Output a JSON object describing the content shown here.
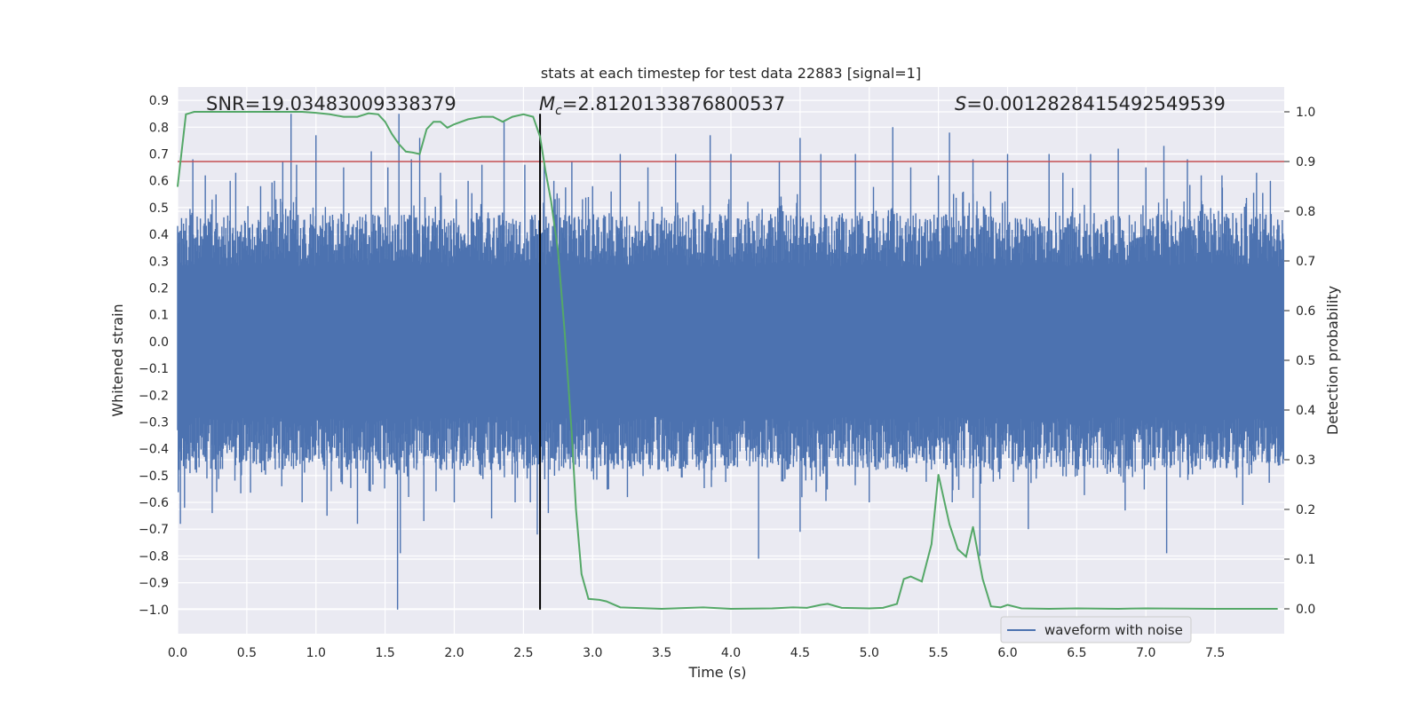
{
  "chart_data": {
    "type": "line",
    "title": "stats at each timestep for test data 22883 [signal=1]",
    "xlabel": "Time (s)",
    "ylabel_left": "Whitened strain",
    "ylabel_right": "Detection probability",
    "xlim": [
      0.0,
      8.0
    ],
    "ylim_left": [
      -1.09,
      0.95
    ],
    "ylim_right": [
      -0.05,
      1.05
    ],
    "x_ticks": [
      "0.0",
      "0.5",
      "1.0",
      "1.5",
      "2.0",
      "2.5",
      "3.0",
      "3.5",
      "4.0",
      "4.5",
      "5.0",
      "5.5",
      "6.0",
      "6.5",
      "7.0",
      "7.5"
    ],
    "y_ticks_left": [
      "0.9",
      "0.8",
      "0.7",
      "0.6",
      "0.5",
      "0.4",
      "0.3",
      "0.2",
      "0.1",
      "0.0",
      "−0.1",
      "−0.2",
      "−0.3",
      "−0.4",
      "−0.5",
      "−0.6",
      "−0.7",
      "−0.8",
      "−0.9",
      "−1.0"
    ],
    "y_ticks_right": [
      "1.0",
      "0.9",
      "0.8",
      "0.7",
      "0.6",
      "0.5",
      "0.4",
      "0.3",
      "0.2",
      "0.1",
      "0.0"
    ],
    "annotations": {
      "snr": "SNR=19.03483009338379",
      "mc_symbol": "M",
      "mc_sub": "c",
      "mc_value": "=2.8120133876800537",
      "s_symbol": "S",
      "s_value": "=0.0012828415492549539"
    },
    "threshold": {
      "value": 0.9,
      "axis": "right",
      "color": "#c44e52"
    },
    "event_marker": {
      "x": 2.62,
      "y_range": [
        -1.0,
        0.85
      ],
      "color": "#000000"
    },
    "legend": [
      {
        "label": "waveform with noise",
        "color": "#4c72b0"
      }
    ],
    "series": [
      {
        "name": "waveform with noise",
        "axis": "left",
        "color": "#4c72b0",
        "style": "noise",
        "typical_envelope": 0.28,
        "duration": 8.0,
        "spikes": [
          [
            0.02,
            -0.68
          ],
          [
            0.05,
            -0.62
          ],
          [
            0.11,
            0.68
          ],
          [
            0.2,
            0.62
          ],
          [
            0.25,
            -0.64
          ],
          [
            0.38,
            0.6
          ],
          [
            0.42,
            0.63
          ],
          [
            0.6,
            0.58
          ],
          [
            0.7,
            0.6
          ],
          [
            0.76,
            0.67
          ],
          [
            0.82,
            0.85
          ],
          [
            0.86,
            0.66
          ],
          [
            0.9,
            -0.6
          ],
          [
            1.0,
            0.77
          ],
          [
            1.08,
            -0.65
          ],
          [
            1.2,
            0.65
          ],
          [
            1.3,
            -0.68
          ],
          [
            1.4,
            0.71
          ],
          [
            1.52,
            0.65
          ],
          [
            1.6,
            0.85
          ],
          [
            1.59,
            -1.0
          ],
          [
            1.61,
            -0.79
          ],
          [
            1.67,
            -0.58
          ],
          [
            1.69,
            0.68
          ],
          [
            1.75,
            0.76
          ],
          [
            1.78,
            -0.67
          ],
          [
            1.9,
            0.63
          ],
          [
            2.0,
            -0.6
          ],
          [
            2.1,
            0.6
          ],
          [
            2.2,
            0.66
          ],
          [
            2.27,
            -0.66
          ],
          [
            2.36,
            0.82
          ],
          [
            2.44,
            -0.6
          ],
          [
            2.51,
            0.66
          ],
          [
            2.55,
            -0.6
          ],
          [
            2.6,
            -0.72
          ],
          [
            2.65,
            0.66
          ],
          [
            2.68,
            -0.64
          ],
          [
            2.72,
            0.6
          ],
          [
            2.85,
            0.67
          ],
          [
            3.0,
            0.58
          ],
          [
            3.2,
            0.7
          ],
          [
            3.4,
            0.65
          ],
          [
            3.6,
            0.7
          ],
          [
            3.85,
            0.77
          ],
          [
            4.0,
            0.7
          ],
          [
            4.2,
            -0.81
          ],
          [
            4.35,
            0.67
          ],
          [
            4.5,
            0.76
          ],
          [
            4.5,
            -0.71
          ],
          [
            4.65,
            0.7
          ],
          [
            4.9,
            0.7
          ],
          [
            5.0,
            -0.6
          ],
          [
            5.17,
            0.8
          ],
          [
            5.3,
            0.65
          ],
          [
            5.5,
            0.62
          ],
          [
            5.58,
            0.78
          ],
          [
            5.6,
            -0.6
          ],
          [
            5.75,
            0.68
          ],
          [
            5.8,
            -0.8
          ],
          [
            6.0,
            0.7
          ],
          [
            6.15,
            -0.7
          ],
          [
            6.3,
            0.7
          ],
          [
            6.4,
            0.63
          ],
          [
            6.6,
            0.7
          ],
          [
            6.8,
            0.72
          ],
          [
            6.85,
            -0.63
          ],
          [
            7.0,
            0.65
          ],
          [
            7.13,
            0.73
          ],
          [
            7.15,
            -0.79
          ],
          [
            7.3,
            0.68
          ],
          [
            7.4,
            0.62
          ],
          [
            7.55,
            0.62
          ],
          [
            7.7,
            -0.61
          ],
          [
            7.8,
            0.63
          ],
          [
            7.9,
            0.6
          ]
        ]
      },
      {
        "name": "detection probability",
        "axis": "right",
        "color": "#55a868",
        "points": [
          [
            0.0,
            0.85
          ],
          [
            0.06,
            0.995
          ],
          [
            0.12,
            1.0
          ],
          [
            0.3,
            1.0
          ],
          [
            0.5,
            1.0
          ],
          [
            0.7,
            1.0
          ],
          [
            0.9,
            1.0
          ],
          [
            1.0,
            0.998
          ],
          [
            1.1,
            0.995
          ],
          [
            1.2,
            0.99
          ],
          [
            1.3,
            0.99
          ],
          [
            1.38,
            0.997
          ],
          [
            1.45,
            0.995
          ],
          [
            1.5,
            0.98
          ],
          [
            1.55,
            0.955
          ],
          [
            1.6,
            0.935
          ],
          [
            1.65,
            0.92
          ],
          [
            1.7,
            0.918
          ],
          [
            1.75,
            0.915
          ],
          [
            1.8,
            0.965
          ],
          [
            1.85,
            0.98
          ],
          [
            1.9,
            0.98
          ],
          [
            1.95,
            0.968
          ],
          [
            2.0,
            0.975
          ],
          [
            2.1,
            0.985
          ],
          [
            2.2,
            0.99
          ],
          [
            2.28,
            0.99
          ],
          [
            2.35,
            0.98
          ],
          [
            2.42,
            0.99
          ],
          [
            2.5,
            0.995
          ],
          [
            2.57,
            0.99
          ],
          [
            2.62,
            0.95
          ],
          [
            2.66,
            0.88
          ],
          [
            2.7,
            0.82
          ],
          [
            2.75,
            0.72
          ],
          [
            2.8,
            0.55
          ],
          [
            2.85,
            0.35
          ],
          [
            2.88,
            0.2
          ],
          [
            2.92,
            0.07
          ],
          [
            2.97,
            0.02
          ],
          [
            3.05,
            0.018
          ],
          [
            3.1,
            0.015
          ],
          [
            3.2,
            0.003
          ],
          [
            3.5,
            0.0
          ],
          [
            3.8,
            0.003
          ],
          [
            4.0,
            0.0
          ],
          [
            4.3,
            0.001
          ],
          [
            4.45,
            0.003
          ],
          [
            4.55,
            0.002
          ],
          [
            4.65,
            0.008
          ],
          [
            4.7,
            0.01
          ],
          [
            4.8,
            0.002
          ],
          [
            5.0,
            0.001
          ],
          [
            5.1,
            0.002
          ],
          [
            5.2,
            0.01
          ],
          [
            5.25,
            0.06
          ],
          [
            5.3,
            0.065
          ],
          [
            5.38,
            0.055
          ],
          [
            5.45,
            0.13
          ],
          [
            5.5,
            0.27
          ],
          [
            5.58,
            0.17
          ],
          [
            5.64,
            0.12
          ],
          [
            5.7,
            0.105
          ],
          [
            5.75,
            0.165
          ],
          [
            5.82,
            0.06
          ],
          [
            5.88,
            0.005
          ],
          [
            5.95,
            0.003
          ],
          [
            6.0,
            0.008
          ],
          [
            6.1,
            0.001
          ],
          [
            6.3,
            0.0
          ],
          [
            6.5,
            0.001
          ],
          [
            6.8,
            0.0
          ],
          [
            7.0,
            0.001
          ],
          [
            7.5,
            0.0
          ],
          [
            7.95,
            0.0
          ]
        ]
      }
    ]
  }
}
